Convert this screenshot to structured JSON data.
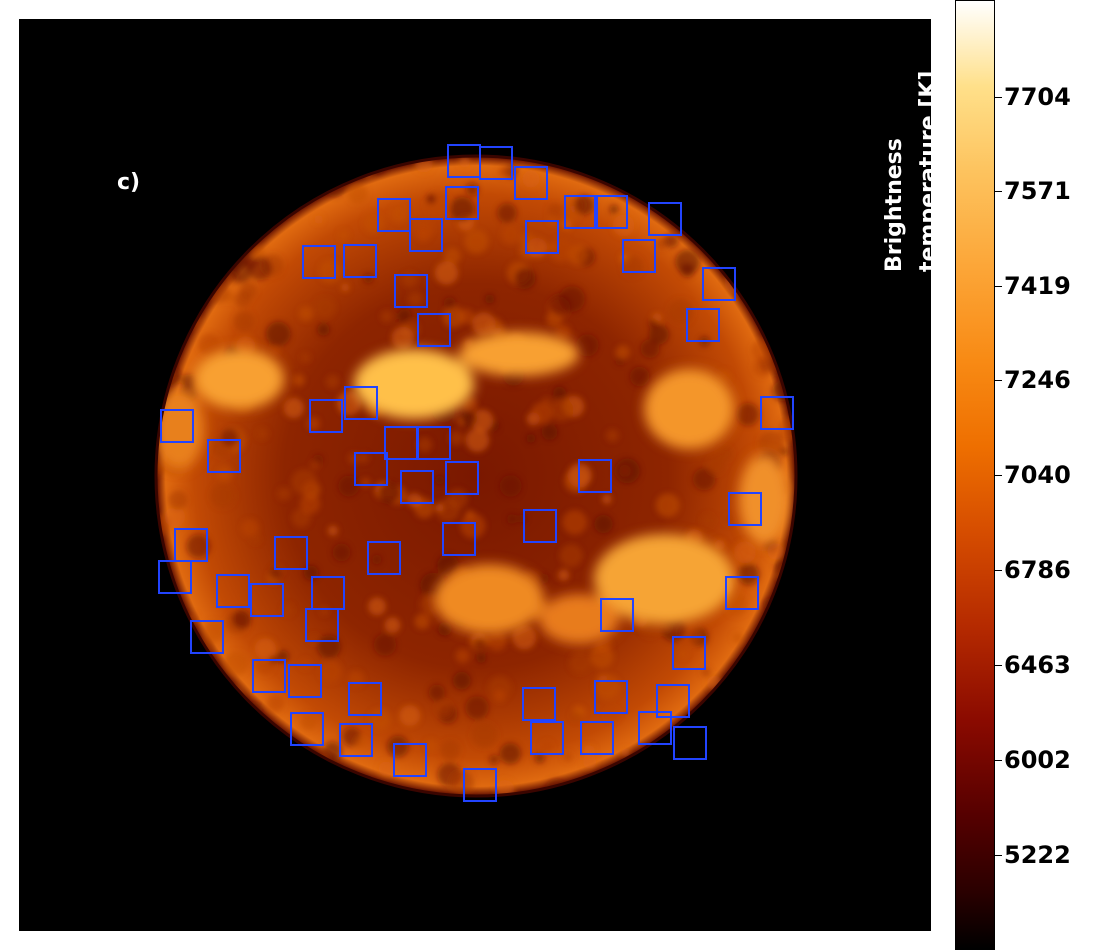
{
  "panel_label": "c)",
  "colorbar": {
    "title_line1": "Brightness",
    "title_line2": "temperature [K]",
    "ticks": [
      "7704",
      "7571",
      "7419",
      "7246",
      "7040",
      "6786",
      "6463",
      "6002",
      "5222"
    ]
  },
  "colors": {
    "marker_box": "#2244ff",
    "background": "#000000"
  },
  "marker_count": 57
}
